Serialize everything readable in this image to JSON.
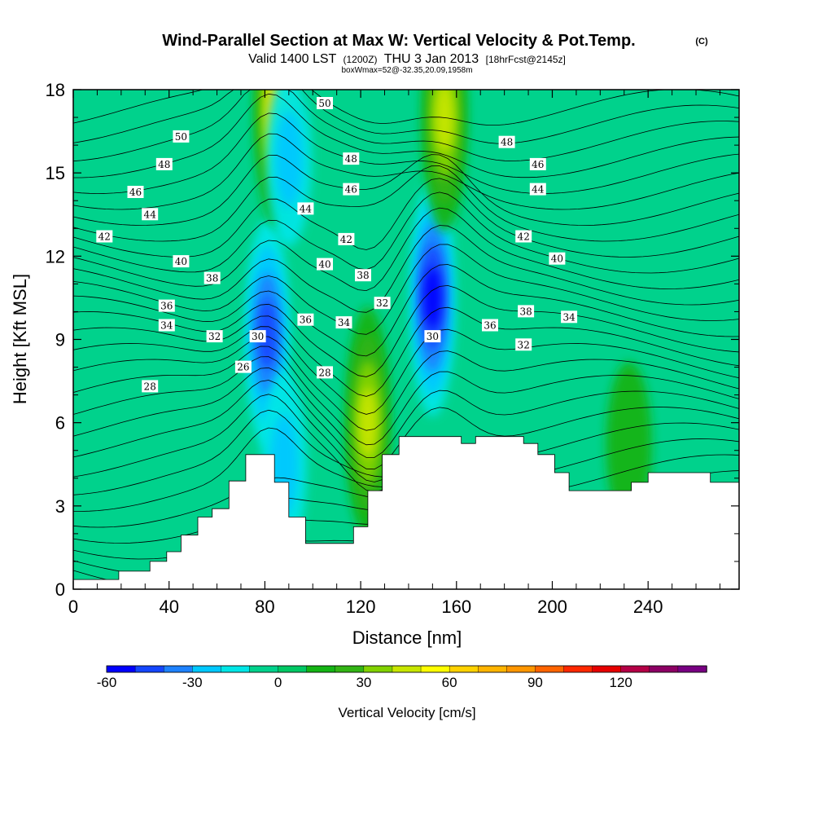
{
  "header": {
    "title": "Wind-Parallel Section at Max W: Vertical Velocity & Pot.Temp.",
    "copyright": "(C)",
    "valid_prefix": "Valid 1400 LST",
    "valid_utc": "(1200Z)",
    "valid_date": "THU 3 Jan 2013",
    "forecast": "[18hrFcst@2145z]",
    "box_info": "boxWmax=52@-32.35,20.09,1958m"
  },
  "colorbar": {
    "title": "Vertical Velocity [cm/s]",
    "tick_labels": [
      "-60",
      "-30",
      "0",
      "30",
      "60",
      "90",
      "120"
    ],
    "colors": [
      "#0000ff",
      "#1446ff",
      "#1e82ff",
      "#00c8ff",
      "#00e6e6",
      "#00d28c",
      "#00c864",
      "#14b414",
      "#32b414",
      "#82d200",
      "#c8e600",
      "#ffff00",
      "#ffd200",
      "#ffb400",
      "#ff9600",
      "#ff6400",
      "#ff2800",
      "#e60000",
      "#b40046",
      "#8c0064",
      "#780082"
    ]
  },
  "chart_data": {
    "type": "heatmap",
    "title": "Wind-Parallel Section at Max W: Vertical Velocity & Pot.Temp.",
    "xlabel": "Distance [nm]",
    "ylabel": "Height [Kft MSL]",
    "xlim": [
      0,
      278
    ],
    "ylim": [
      0,
      18
    ],
    "x_ticks": [
      "0",
      "40",
      "80",
      "120",
      "160",
      "200",
      "240"
    ],
    "y_ticks": [
      "0",
      "3",
      "6",
      "9",
      "12",
      "15",
      "18"
    ],
    "grid": false,
    "fill_variable": "Vertical Velocity [cm/s]",
    "contour_variable": "Potential Temperature",
    "terrain": [
      [
        0,
        0.35
      ],
      [
        19,
        0.35
      ],
      [
        19,
        0.65
      ],
      [
        32,
        0.65
      ],
      [
        32,
        1.0
      ],
      [
        39,
        1.0
      ],
      [
        39,
        1.35
      ],
      [
        45,
        1.35
      ],
      [
        45,
        1.95
      ],
      [
        52,
        1.95
      ],
      [
        52,
        2.6
      ],
      [
        58,
        2.6
      ],
      [
        58,
        2.9
      ],
      [
        65,
        2.9
      ],
      [
        65,
        3.9
      ],
      [
        72,
        3.9
      ],
      [
        72,
        4.85
      ],
      [
        84,
        4.85
      ],
      [
        84,
        3.85
      ],
      [
        90,
        3.85
      ],
      [
        90,
        2.6
      ],
      [
        97,
        2.6
      ],
      [
        97,
        1.65
      ],
      [
        117,
        1.65
      ],
      [
        117,
        2.25
      ],
      [
        123,
        2.25
      ],
      [
        123,
        3.55
      ],
      [
        129,
        3.55
      ],
      [
        129,
        4.85
      ],
      [
        136,
        4.85
      ],
      [
        136,
        5.5
      ],
      [
        162,
        5.5
      ],
      [
        162,
        5.25
      ],
      [
        168,
        5.25
      ],
      [
        168,
        5.5
      ],
      [
        188,
        5.5
      ],
      [
        188,
        5.25
      ],
      [
        194,
        5.25
      ],
      [
        194,
        4.85
      ],
      [
        201,
        4.85
      ],
      [
        201,
        4.2
      ],
      [
        207,
        4.2
      ],
      [
        207,
        3.55
      ],
      [
        233,
        3.55
      ],
      [
        233,
        3.85
      ],
      [
        240,
        3.85
      ],
      [
        240,
        4.2
      ],
      [
        266,
        4.2
      ],
      [
        266,
        3.85
      ],
      [
        278,
        3.85
      ]
    ],
    "w_features": [
      {
        "x": 81,
        "y": 9.2,
        "w_cm_s": -50
      },
      {
        "x": 88,
        "y": 4.5,
        "w_cm_s": -25
      },
      {
        "x": 150,
        "y": 10.5,
        "w_cm_s": -55
      },
      {
        "x": 123,
        "y": 6.0,
        "w_cm_s": 52
      },
      {
        "x": 155,
        "y": 17.0,
        "w_cm_s": 50
      },
      {
        "x": 85,
        "y": 17.3,
        "w_cm_s": 55
      },
      {
        "x": 90,
        "y": 15.5,
        "w_cm_s": -20
      },
      {
        "x": 232,
        "y": 5.2,
        "w_cm_s": 15
      }
    ],
    "theta_labels": [
      {
        "value": "50",
        "x": 45,
        "y": 16.3
      },
      {
        "value": "48",
        "x": 38,
        "y": 15.3
      },
      {
        "value": "46",
        "x": 26,
        "y": 14.3
      },
      {
        "value": "44",
        "x": 32,
        "y": 13.5
      },
      {
        "value": "42",
        "x": 13,
        "y": 12.7
      },
      {
        "value": "40",
        "x": 45,
        "y": 11.8
      },
      {
        "value": "38",
        "x": 58,
        "y": 11.2
      },
      {
        "value": "36",
        "x": 39,
        "y": 10.2
      },
      {
        "value": "34",
        "x": 39,
        "y": 9.5
      },
      {
        "value": "32",
        "x": 59,
        "y": 9.1
      },
      {
        "value": "30",
        "x": 77,
        "y": 9.1
      },
      {
        "value": "28",
        "x": 32,
        "y": 7.3
      },
      {
        "value": "26",
        "x": 71,
        "y": 8.0
      },
      {
        "value": "50",
        "x": 105,
        "y": 17.5
      },
      {
        "value": "48",
        "x": 116,
        "y": 15.5
      },
      {
        "value": "46",
        "x": 116,
        "y": 14.4
      },
      {
        "value": "44",
        "x": 97,
        "y": 13.7
      },
      {
        "value": "42",
        "x": 114,
        "y": 12.6
      },
      {
        "value": "40",
        "x": 105,
        "y": 11.7
      },
      {
        "value": "38",
        "x": 121,
        "y": 11.3
      },
      {
        "value": "36",
        "x": 97,
        "y": 9.7
      },
      {
        "value": "34",
        "x": 113,
        "y": 9.6
      },
      {
        "value": "32",
        "x": 129,
        "y": 10.3
      },
      {
        "value": "28",
        "x": 105,
        "y": 7.8
      },
      {
        "value": "30",
        "x": 150,
        "y": 9.1
      },
      {
        "value": "36",
        "x": 174,
        "y": 9.5
      },
      {
        "value": "32",
        "x": 188,
        "y": 8.8
      },
      {
        "value": "38",
        "x": 189,
        "y": 10.0
      },
      {
        "value": "34",
        "x": 207,
        "y": 9.8
      },
      {
        "value": "40",
        "x": 202,
        "y": 11.9
      },
      {
        "value": "42",
        "x": 188,
        "y": 12.7
      },
      {
        "value": "44",
        "x": 194,
        "y": 14.4
      },
      {
        "value": "46",
        "x": 194,
        "y": 15.3
      },
      {
        "value": "48",
        "x": 181,
        "y": 16.1
      }
    ]
  }
}
